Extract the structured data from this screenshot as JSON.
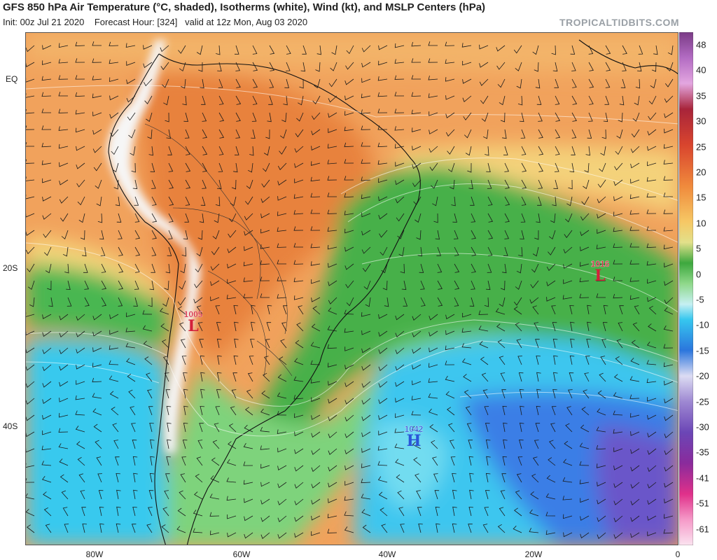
{
  "header": {
    "title": "GFS 850 hPa Air Temperature (°C, shaded), Isotherms (white), Wind (kt), and MSLP Centers (hPa)",
    "init": "Init: 00z Jul 21 2020",
    "forecast": "Forecast Hour: [324]",
    "valid": "valid at 12z Mon, Aug 03 2020",
    "brand": "TROPICALTIDBITS.COM"
  },
  "axes": {
    "lat_labels": [
      "EQ",
      "20S",
      "40S"
    ],
    "lon_labels": [
      "80W",
      "60W",
      "40W",
      "20W",
      "0"
    ]
  },
  "colorbar": {
    "labels": [
      "48",
      "40",
      "35",
      "30",
      "25",
      "20",
      "15",
      "10",
      "5",
      "0",
      "-5",
      "-10",
      "-15",
      "-20",
      "-25",
      "-30",
      "-35",
      "-41",
      "-51",
      "-61"
    ]
  },
  "pressure_centers": [
    {
      "type": "L",
      "value": "1005",
      "color": "#d4203a"
    },
    {
      "type": "L",
      "value": "1016",
      "color": "#d4203a"
    },
    {
      "type": "H",
      "value": "1042",
      "color": "#2a55d8"
    }
  ]
}
